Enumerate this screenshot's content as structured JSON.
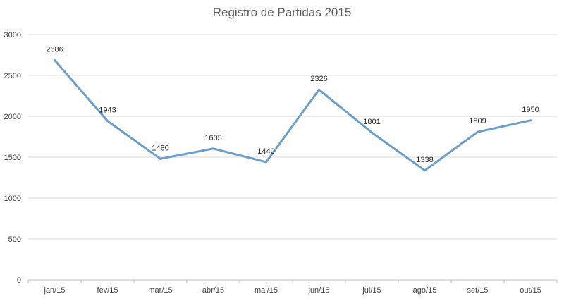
{
  "chart_data": {
    "type": "line",
    "title": "Registro de Partidas 2015",
    "xlabel": "",
    "ylabel": "",
    "categories": [
      "jan/15",
      "fev/15",
      "mar/15",
      "abr/15",
      "mai/15",
      "jun/15",
      "jul/15",
      "ago/15",
      "set/15",
      "out/15"
    ],
    "series": [
      {
        "values": [
          2686,
          1943,
          1480,
          1605,
          1440,
          2326,
          1801,
          1338,
          1809,
          1950
        ]
      }
    ],
    "ylim": [
      0,
      3000
    ],
    "yticks": [
      0,
      500,
      1000,
      1500,
      2000,
      2500,
      3000
    ],
    "grid": true,
    "legend": "none",
    "data_labels": true,
    "colors": {
      "line": "#6a9dc8",
      "grid": "#d9d9d9",
      "axis": "#bfbfbf"
    }
  }
}
